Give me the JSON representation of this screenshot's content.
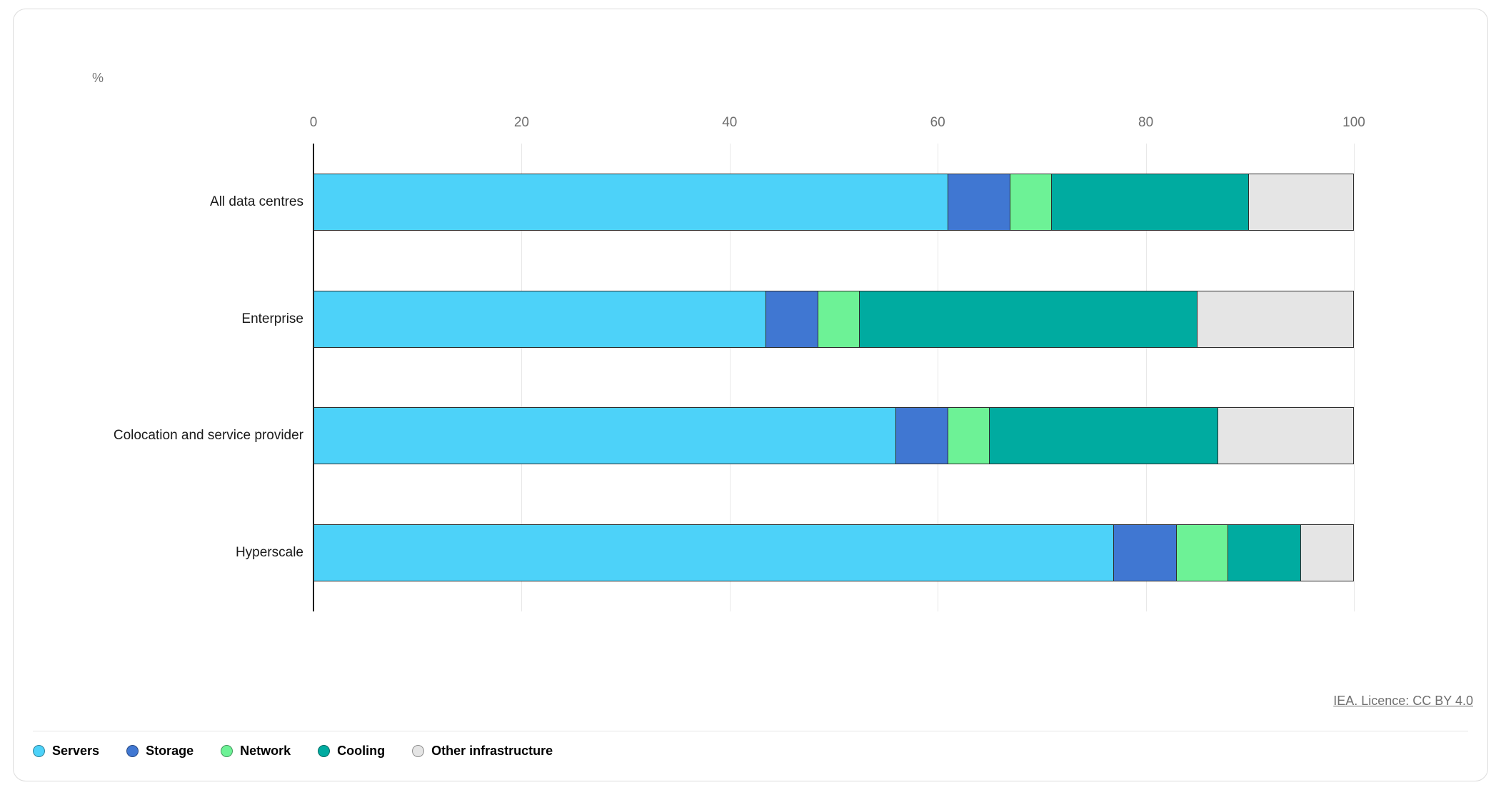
{
  "licence": {
    "text": "IEA. Licence: CC BY 4.0"
  },
  "chart_data": {
    "type": "bar",
    "orientation": "horizontal",
    "stacked": true,
    "title": "",
    "ylabel": "%",
    "xlabel": "",
    "xlim": [
      0,
      100
    ],
    "x_ticks": [
      0,
      20,
      40,
      60,
      80,
      100
    ],
    "grid": true,
    "legend_position": "bottom",
    "categories": [
      "All data centres",
      "Enterprise",
      "Colocation and service provider",
      "Hyperscale"
    ],
    "series": [
      {
        "name": "Servers",
        "color": "#4DD2F9",
        "values": [
          61,
          43.5,
          56,
          77
        ]
      },
      {
        "name": "Storage",
        "color": "#4077D2",
        "values": [
          6,
          5,
          5,
          6
        ]
      },
      {
        "name": "Network",
        "color": "#6DF296",
        "values": [
          4,
          4,
          4,
          5
        ]
      },
      {
        "name": "Cooling",
        "color": "#00ABA0",
        "values": [
          19,
          32.5,
          22,
          7
        ]
      },
      {
        "name": "Other infrastructure",
        "color": "#E5E5E5",
        "values": [
          10,
          15,
          13,
          5
        ]
      }
    ]
  }
}
